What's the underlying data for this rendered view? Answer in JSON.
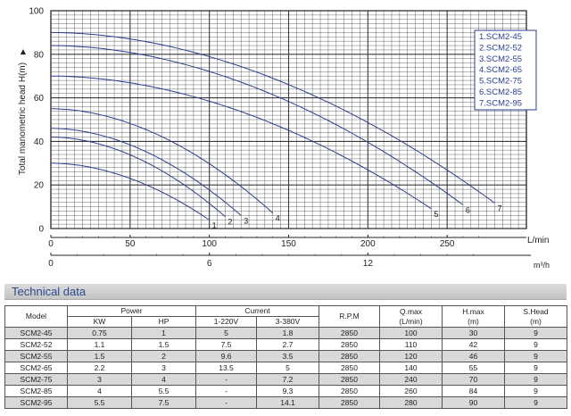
{
  "chart_data": {
    "type": "line",
    "ylabel": "Total manometric head H(m)",
    "xlabel": "L/min",
    "x2label": "m³/h",
    "xlim": [
      0,
      300
    ],
    "ylim": [
      0,
      100
    ],
    "x_ticks": [
      0,
      50,
      100,
      150,
      200,
      250
    ],
    "y_ticks": [
      0,
      20,
      40,
      60,
      80,
      100
    ],
    "x2_ticks": [
      0,
      6,
      12
    ],
    "grid": true,
    "legend": "top-right",
    "legend_items": [
      "1.SCM2-45",
      "2.SCM2-52",
      "3.SCM2-55",
      "4.SCM2-65",
      "5.SCM2-75",
      "6.SCM2-85",
      "7.SCM2-95"
    ],
    "series": [
      {
        "name": "1",
        "qmax": 100,
        "hmax": 30
      },
      {
        "name": "2",
        "qmax": 110,
        "hmax": 42
      },
      {
        "name": "3",
        "qmax": 120,
        "hmax": 46
      },
      {
        "name": "4",
        "qmax": 140,
        "hmax": 55
      },
      {
        "name": "5",
        "qmax": 240,
        "hmax": 70
      },
      {
        "name": "6",
        "qmax": 260,
        "hmax": 84
      },
      {
        "name": "7",
        "qmax": 280,
        "hmax": 90
      }
    ],
    "colors": {
      "curve": "#2a3f8f",
      "grid": "#3a3a3a",
      "legend_border": "#2a3f8f"
    }
  },
  "table": {
    "title": "Technical data",
    "headers": {
      "model": "Model",
      "power": "Power",
      "kw": "KW",
      "hp": "HP",
      "current": "Current",
      "c1": "1-220V",
      "c3": "3-380V",
      "rpm": "R.P.M",
      "qmax": "Q.max",
      "qmax_unit": "(L/min)",
      "hmax": "H.max",
      "hmax_unit": "(m)",
      "shead": "S.Head",
      "shead_unit": "(m)"
    },
    "rows": [
      [
        "SCM2-45",
        "0.75",
        "1",
        "5",
        "1.8",
        "2850",
        "100",
        "30",
        "9"
      ],
      [
        "SCM2-52",
        "1.1",
        "1.5",
        "7.5",
        "2.7",
        "2850",
        "110",
        "42",
        "9"
      ],
      [
        "SCM2-55",
        "1.5",
        "2",
        "9.6",
        "3.5",
        "2850",
        "120",
        "46",
        "9"
      ],
      [
        "SCM2-65",
        "2.2",
        "3",
        "13.5",
        "5",
        "2850",
        "140",
        "55",
        "9"
      ],
      [
        "SCM2-75",
        "3",
        "4",
        "-",
        "7.2",
        "2850",
        "240",
        "70",
        "9"
      ],
      [
        "SCM2-85",
        "4",
        "5.5",
        "-",
        "9.3",
        "2850",
        "260",
        "84",
        "9"
      ],
      [
        "SCM2-95",
        "5.5",
        "7.5",
        "-",
        "14.1",
        "2850",
        "280",
        "90",
        "9"
      ]
    ]
  }
}
